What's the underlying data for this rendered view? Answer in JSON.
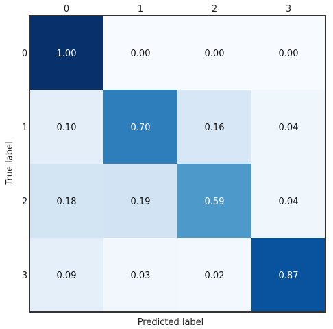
{
  "chart_data": {
    "type": "heatmap",
    "title": "",
    "xlabel": "Predicted label",
    "ylabel": "True label",
    "x_ticks": [
      "0",
      "1",
      "2",
      "3"
    ],
    "y_ticks": [
      "0",
      "1",
      "2",
      "3"
    ],
    "x_ticks_position": "top",
    "colormap": "Blues",
    "value_range": [
      0,
      1
    ],
    "grid": false,
    "values": [
      [
        1.0,
        0.0,
        0.0,
        0.0
      ],
      [
        0.1,
        0.7,
        0.16,
        0.04
      ],
      [
        0.18,
        0.19,
        0.59,
        0.04
      ],
      [
        0.09,
        0.03,
        0.02,
        0.87
      ]
    ],
    "cell_labels": [
      [
        "1.00",
        "0.00",
        "0.00",
        "0.00"
      ],
      [
        "0.10",
        "0.70",
        "0.16",
        "0.04"
      ],
      [
        "0.18",
        "0.19",
        "0.59",
        "0.04"
      ],
      [
        "0.09",
        "0.03",
        "0.02",
        "0.87"
      ]
    ]
  }
}
